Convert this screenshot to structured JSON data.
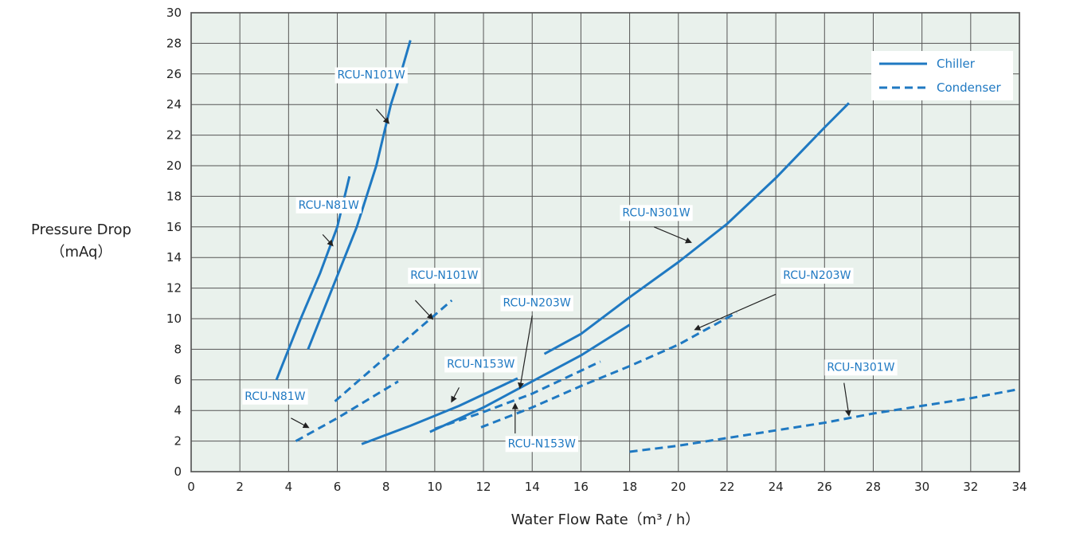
{
  "chart_data": {
    "type": "line",
    "xlabel": "Water Flow Rate（m³ / h）",
    "ylabel": "Pressure Drop",
    "ylabel_unit": "（mAq）",
    "xlim": [
      0,
      34
    ],
    "ylim": [
      0,
      30
    ],
    "x_ticks": [
      0,
      2,
      4,
      6,
      8,
      10,
      12,
      14,
      16,
      18,
      20,
      22,
      24,
      26,
      28,
      30,
      32,
      34
    ],
    "y_ticks": [
      0,
      2,
      4,
      6,
      8,
      10,
      12,
      14,
      16,
      18,
      20,
      22,
      24,
      26,
      28,
      30
    ],
    "grid": true,
    "legend": {
      "position": "top-right",
      "entries": [
        {
          "label": "Chiller",
          "style": "solid"
        },
        {
          "label": "Condenser",
          "style": "dashed"
        }
      ]
    },
    "colors": {
      "line": "#1f79c2",
      "plot_bg": "#e9f1ec",
      "grid": "#555555",
      "text": "#1f79c2"
    },
    "series": [
      {
        "name": "RCU-N81W",
        "kind": "Chiller",
        "points": [
          [
            3.5,
            6
          ],
          [
            4.5,
            10
          ],
          [
            5.3,
            13
          ],
          [
            6.0,
            16
          ],
          [
            6.5,
            19.3
          ]
        ]
      },
      {
        "name": "RCU-N101W",
        "kind": "Chiller",
        "points": [
          [
            4.8,
            8
          ],
          [
            5.8,
            12
          ],
          [
            6.8,
            16
          ],
          [
            7.6,
            20
          ],
          [
            8.2,
            24
          ],
          [
            8.6,
            26
          ],
          [
            9.0,
            28.2
          ]
        ]
      },
      {
        "name": "RCU-N153W",
        "kind": "Chiller",
        "points": [
          [
            7.0,
            1.8
          ],
          [
            9.0,
            3.0
          ],
          [
            11.0,
            4.3
          ],
          [
            13.4,
            6.1
          ]
        ]
      },
      {
        "name": "RCU-N203W",
        "kind": "Chiller",
        "points": [
          [
            9.8,
            2.6
          ],
          [
            12.0,
            4.2
          ],
          [
            14.0,
            5.9
          ],
          [
            16.0,
            7.6
          ],
          [
            18.0,
            9.6
          ]
        ]
      },
      {
        "name": "RCU-N301W",
        "kind": "Chiller",
        "points": [
          [
            14.5,
            7.7
          ],
          [
            16.0,
            9.0
          ],
          [
            18.0,
            11.4
          ],
          [
            20.0,
            13.7
          ],
          [
            22.0,
            16.2
          ],
          [
            24.0,
            19.2
          ],
          [
            26.0,
            22.5
          ],
          [
            27.0,
            24.1
          ]
        ]
      },
      {
        "name": "RCU-N81W",
        "kind": "Condenser",
        "points": [
          [
            4.3,
            2.0
          ],
          [
            6.0,
            3.5
          ],
          [
            8.5,
            5.9
          ]
        ]
      },
      {
        "name": "RCU-N101W",
        "kind": "Condenser",
        "points": [
          [
            5.9,
            4.6
          ],
          [
            8.0,
            7.5
          ],
          [
            10.7,
            11.2
          ]
        ]
      },
      {
        "name": "RCU-N153W",
        "kind": "Condenser",
        "points": [
          [
            10.0,
            2.8
          ],
          [
            12.0,
            3.9
          ],
          [
            14.0,
            5.1
          ],
          [
            16.8,
            7.2
          ]
        ]
      },
      {
        "name": "RCU-N203W",
        "kind": "Condenser",
        "points": [
          [
            11.9,
            2.9
          ],
          [
            14.0,
            4.2
          ],
          [
            16.0,
            5.6
          ],
          [
            18.0,
            6.9
          ],
          [
            20.0,
            8.3
          ],
          [
            22.4,
            10.4
          ]
        ]
      },
      {
        "name": "RCU-N301W",
        "kind": "Condenser",
        "points": [
          [
            18.0,
            1.3
          ],
          [
            20.0,
            1.7
          ],
          [
            22.0,
            2.2
          ],
          [
            24.0,
            2.7
          ],
          [
            26.0,
            3.2
          ],
          [
            28.0,
            3.8
          ],
          [
            30.0,
            4.3
          ],
          [
            32.0,
            4.8
          ],
          [
            34.0,
            5.4
          ]
        ]
      }
    ],
    "annotations": [
      {
        "text": "RCU-N101W",
        "label_at": [
          6.0,
          25.7
        ],
        "arrow_from": [
          7.6,
          23.7
        ],
        "arrow_to": [
          8.1,
          22.8
        ]
      },
      {
        "text": "RCU-N81W",
        "label_at": [
          4.4,
          17.2
        ],
        "arrow_from": [
          5.4,
          15.5
        ],
        "arrow_to": [
          5.8,
          14.8
        ]
      },
      {
        "text": "RCU-N101W",
        "label_at": [
          9.0,
          12.6
        ],
        "arrow_from": [
          9.2,
          11.2
        ],
        "arrow_to": [
          9.9,
          10.0
        ]
      },
      {
        "text": "RCU-N81W",
        "label_at": [
          2.2,
          4.7
        ],
        "arrow_from": [
          4.1,
          3.5
        ],
        "arrow_to": [
          4.8,
          2.9
        ]
      },
      {
        "text": "RCU-N203W",
        "label_at": [
          12.8,
          10.8
        ],
        "arrow_from": [
          14.0,
          10.2
        ],
        "arrow_to": [
          13.5,
          5.5
        ]
      },
      {
        "text": "RCU-N153W",
        "label_at": [
          10.5,
          6.8
        ],
        "arrow_from": [
          11.0,
          5.5
        ],
        "arrow_to": [
          10.7,
          4.6
        ]
      },
      {
        "text": "RCU-N153W",
        "label_at": [
          13.0,
          1.6
        ],
        "arrow_from": [
          13.3,
          2.5
        ],
        "arrow_to": [
          13.3,
          4.4
        ]
      },
      {
        "text": "RCU-N301W",
        "label_at": [
          17.7,
          16.7
        ],
        "arrow_from": [
          19.0,
          16.0
        ],
        "arrow_to": [
          20.5,
          15.0
        ]
      },
      {
        "text": "RCU-N203W",
        "label_at": [
          24.3,
          12.6
        ],
        "arrow_from": [
          24.0,
          11.6
        ],
        "arrow_to": [
          20.7,
          9.3
        ]
      },
      {
        "text": "RCU-N301W",
        "label_at": [
          26.1,
          6.6
        ],
        "arrow_from": [
          26.8,
          5.8
        ],
        "arrow_to": [
          27.0,
          3.7
        ]
      }
    ]
  }
}
